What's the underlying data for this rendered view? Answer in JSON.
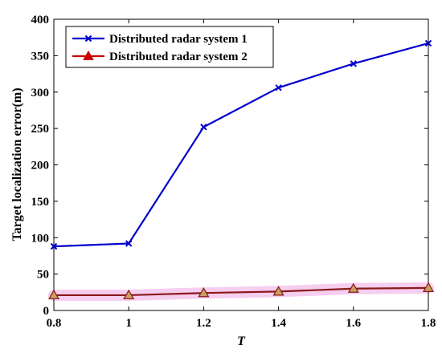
{
  "chart_data": {
    "type": "line",
    "xlabel": "T",
    "ylabel": "Target localization error(m)",
    "x": [
      0.8,
      1.0,
      1.2,
      1.4,
      1.6,
      1.8
    ],
    "xticks": [
      "0.8",
      "1",
      "1.2",
      "1.4",
      "1.6",
      "1.8"
    ],
    "yticks": [
      "0",
      "50",
      "100",
      "150",
      "200",
      "250",
      "300",
      "350",
      "400"
    ],
    "xlim": [
      0.8,
      1.8
    ],
    "ylim": [
      0,
      400
    ],
    "grid": false,
    "legend_position": "top-left",
    "series": [
      {
        "name": "Distributed radar system 1",
        "values": [
          88,
          92,
          252,
          306,
          339,
          367
        ],
        "color": "#0000cc",
        "marker": "x"
      },
      {
        "name": "Distributed radar system 2",
        "values": [
          21,
          21,
          24,
          26,
          30,
          31
        ],
        "color": "#cc0000",
        "marker": "triangle"
      }
    ]
  }
}
